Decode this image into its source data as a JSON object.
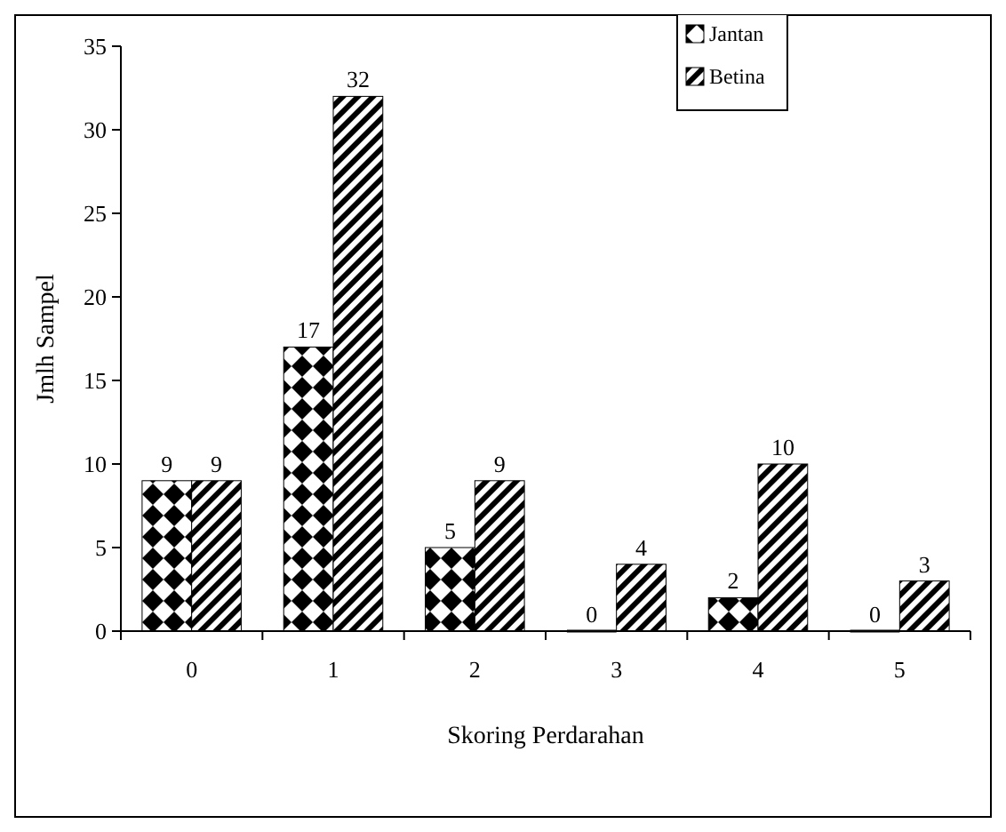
{
  "chart_data": {
    "type": "bar",
    "xlabel": "Skoring Perdarahan",
    "ylabel": "Jmlh Sampel",
    "categories": [
      "0",
      "1",
      "2",
      "3",
      "4",
      "5"
    ],
    "series": [
      {
        "name": "Jantan",
        "color": "#000000",
        "values": [
          9,
          17,
          5,
          0,
          2,
          0
        ]
      },
      {
        "name": "Betina",
        "color": "#000000",
        "values": [
          9,
          32,
          9,
          4,
          10,
          3
        ]
      }
    ],
    "ylim": [
      0,
      35
    ],
    "yticks": [
      0,
      5,
      10,
      15,
      20,
      25,
      30,
      35
    ],
    "data_labels": true,
    "legend": "top right",
    "grid": false
  }
}
